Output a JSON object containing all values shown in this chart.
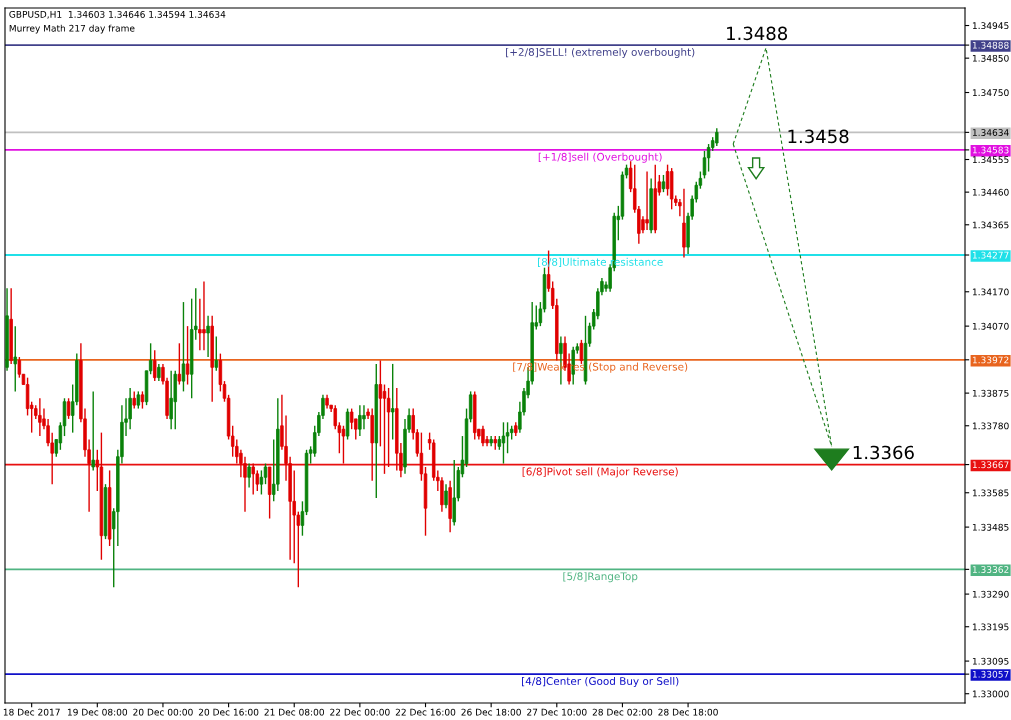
{
  "chart_data": {
    "type": "candlestick",
    "title": "GBPUSD,H1  1.34603 1.34646 1.34594 1.34634",
    "subtitle": "Murrey Math 217 day frame",
    "categories": [
      null,
      null,
      null,
      null,
      null,
      null,
      "18 Dec 2017",
      null,
      null,
      null,
      null,
      null,
      null,
      null,
      null,
      null,
      null,
      null,
      null,
      null,
      null,
      null,
      "19 Dec 08:00",
      null,
      null,
      null,
      null,
      null,
      null,
      null,
      null,
      null,
      null,
      null,
      null,
      null,
      null,
      null,
      "20 Dec 00:00",
      null,
      null,
      null,
      null,
      null,
      null,
      null,
      null,
      null,
      null,
      null,
      null,
      null,
      null,
      null,
      "20 Dec 16:00",
      null,
      null,
      null,
      null,
      null,
      null,
      null,
      null,
      null,
      null,
      null,
      null,
      null,
      null,
      null,
      "21 Dec 08:00",
      null,
      null,
      null,
      null,
      null,
      null,
      null,
      null,
      null,
      null,
      null,
      null,
      null,
      null,
      null,
      "22 Dec 00:00",
      null,
      null,
      null,
      null,
      null,
      null,
      null,
      null,
      null,
      null,
      null,
      null,
      null,
      null,
      null,
      "22 Dec 16:00",
      null,
      null,
      null,
      null,
      null,
      null,
      null,
      null,
      null,
      null,
      null,
      null,
      null,
      null,
      null,
      "26 Dec 18:00",
      null,
      null,
      null,
      null,
      null,
      null,
      null,
      null,
      null,
      null,
      null,
      null,
      null,
      null,
      null,
      "27 Dec 10:00",
      null,
      null,
      null,
      null,
      null,
      null,
      null,
      null,
      null,
      null,
      null,
      null,
      null,
      null,
      null,
      "28 Dec 02:00",
      null,
      null,
      null,
      null,
      null,
      null,
      null,
      null,
      null,
      null,
      null,
      null,
      null,
      null,
      null,
      "28 Dec 18:00",
      null,
      null,
      null,
      null,
      null,
      null,
      null,
      null,
      null,
      null,
      null,
      null,
      null,
      null,
      null,
      null,
      null,
      null,
      null,
      null,
      null,
      null,
      null,
      null,
      null,
      null,
      null,
      null,
      null,
      null,
      null,
      null,
      null,
      null,
      null,
      null,
      null,
      null,
      null,
      null,
      null,
      null,
      null,
      null,
      null,
      null,
      null,
      null,
      null,
      null,
      null,
      null,
      null,
      null,
      null,
      null,
      null,
      null,
      null,
      null,
      null,
      null,
      null,
      null,
      null,
      null,
      null
    ],
    "ohlc": [
      [
        1.3395,
        1.3418,
        1.3394,
        1.341
      ],
      [
        1.3409,
        1.3418,
        1.3396,
        1.3397
      ],
      [
        1.3396,
        1.3407,
        1.3388,
        1.3398
      ],
      [
        1.3397,
        1.3398,
        1.3392,
        1.3393
      ],
      [
        1.3393,
        1.3393,
        1.339,
        1.339
      ],
      [
        1.339,
        1.3392,
        1.3381,
        1.3383
      ],
      [
        1.3384,
        1.3385,
        1.3376,
        1.3383
      ],
      [
        1.3383,
        1.3384,
        1.338,
        1.3381
      ],
      [
        1.3381,
        1.3386,
        1.3375,
        1.3379
      ],
      [
        1.338,
        1.3383,
        1.3377,
        1.3378
      ],
      [
        1.3378,
        1.338,
        1.3372,
        1.3373
      ],
      [
        1.3373,
        1.3376,
        1.3361,
        1.337
      ],
      [
        1.337,
        1.3374,
        1.3369,
        1.3374
      ],
      [
        1.3373,
        1.3379,
        1.3371,
        1.3378
      ],
      [
        1.3378,
        1.3386,
        1.3375,
        1.3385
      ],
      [
        1.3385,
        1.3386,
        1.338,
        1.3381
      ],
      [
        1.3381,
        1.339,
        1.3376,
        1.3385
      ],
      [
        1.3385,
        1.3399,
        1.3384,
        1.3397
      ],
      [
        1.3397,
        1.3402,
        1.3379,
        1.338
      ],
      [
        1.338,
        1.3383,
        1.3369,
        1.3371
      ],
      [
        1.3371,
        1.3374,
        1.3353,
        1.3367
      ],
      [
        1.3366,
        1.3388,
        1.3365,
        1.3368
      ],
      [
        1.3368,
        1.3371,
        1.3359,
        1.3366
      ],
      [
        1.3366,
        1.3376,
        1.3339,
        1.3346
      ],
      [
        1.3346,
        1.3361,
        1.3345,
        1.336
      ],
      [
        1.336,
        1.3365,
        1.3343,
        1.3345
      ],
      [
        1.3348,
        1.3354,
        1.3331,
        1.3353
      ],
      [
        1.3353,
        1.3371,
        1.3343,
        1.3369
      ],
      [
        1.3369,
        1.3384,
        1.3367,
        1.3379
      ],
      [
        1.3379,
        1.3386,
        1.3375,
        1.338
      ],
      [
        1.338,
        1.3389,
        1.3377,
        1.3386
      ],
      [
        1.3386,
        1.3388,
        1.3383,
        1.3384
      ],
      [
        1.3384,
        1.3388,
        1.3383,
        1.3387
      ],
      [
        1.3387,
        1.3388,
        1.3383,
        1.3385
      ],
      [
        1.3385,
        1.3394,
        1.3384,
        1.3394
      ],
      [
        1.3394,
        1.3402,
        1.3393,
        1.3397
      ],
      [
        1.3397,
        1.34,
        1.3391,
        1.3392
      ],
      [
        1.3392,
        1.3396,
        1.3391,
        1.3395
      ],
      [
        1.3395,
        1.3396,
        1.339,
        1.3391
      ],
      [
        1.3391,
        1.3392,
        1.338,
        1.3381
      ],
      [
        1.338,
        1.3394,
        1.3377,
        1.3386
      ],
      [
        1.3385,
        1.3394,
        1.3377,
        1.3393
      ],
      [
        1.3393,
        1.3402,
        1.339,
        1.3391
      ],
      [
        1.3391,
        1.3414,
        1.3388,
        1.3396
      ],
      [
        1.3396,
        1.3407,
        1.339,
        1.3393
      ],
      [
        1.3393,
        1.3415,
        1.3386,
        1.3406
      ],
      [
        1.3406,
        1.3418,
        1.3403,
        1.3407
      ],
      [
        1.3406,
        1.3415,
        1.34,
        1.3405
      ],
      [
        1.3406,
        1.342,
        1.34,
        1.3405
      ],
      [
        1.3405,
        1.341,
        1.3398,
        1.3407
      ],
      [
        1.3407,
        1.341,
        1.3385,
        1.3395
      ],
      [
        1.3395,
        1.3404,
        1.3394,
        1.3397
      ],
      [
        1.3397,
        1.3399,
        1.3388,
        1.339
      ],
      [
        1.339,
        1.3391,
        1.3385,
        1.3386
      ],
      [
        1.3386,
        1.3387,
        1.3374,
        1.3375
      ],
      [
        1.3375,
        1.3378,
        1.3369,
        1.3372
      ],
      [
        1.3372,
        1.3374,
        1.3367,
        1.3369
      ],
      [
        1.337,
        1.3371,
        1.3363,
        1.3367
      ],
      [
        1.3367,
        1.3369,
        1.3353,
        1.3363
      ],
      [
        1.3363,
        1.3367,
        1.336,
        1.3366
      ],
      [
        1.3366,
        1.3367,
        1.3358,
        1.3364
      ],
      [
        1.3364,
        1.3365,
        1.3359,
        1.3361
      ],
      [
        1.3361,
        1.3365,
        1.3358,
        1.3363
      ],
      [
        1.3363,
        1.3367,
        1.3361,
        1.3366
      ],
      [
        1.3366,
        1.3366,
        1.3351,
        1.3358
      ],
      [
        1.3358,
        1.3374,
        1.3356,
        1.3361
      ],
      [
        1.3361,
        1.3386,
        1.3359,
        1.3377
      ],
      [
        1.3378,
        1.3387,
        1.3371,
        1.3372
      ],
      [
        1.3372,
        1.3381,
        1.3362,
        1.3367
      ],
      [
        1.3367,
        1.3369,
        1.3339,
        1.3356
      ],
      [
        1.3356,
        1.3365,
        1.3338,
        1.3352
      ],
      [
        1.3352,
        1.3353,
        1.3331,
        1.3349
      ],
      [
        1.3349,
        1.3356,
        1.3346,
        1.3353
      ],
      [
        1.3353,
        1.3371,
        1.3352,
        1.337
      ],
      [
        1.337,
        1.3372,
        1.3367,
        1.3371
      ],
      [
        1.337,
        1.3378,
        1.3369,
        1.3376
      ],
      [
        1.3376,
        1.3382,
        1.3375,
        1.3381
      ],
      [
        1.3381,
        1.3387,
        1.338,
        1.3386
      ],
      [
        1.3386,
        1.3387,
        1.3383,
        1.3384
      ],
      [
        1.3384,
        1.3384,
        1.3382,
        1.3383
      ],
      [
        1.3383,
        1.3384,
        1.3377,
        1.3378
      ],
      [
        1.3378,
        1.3379,
        1.337,
        1.3376
      ],
      [
        1.3377,
        1.3378,
        1.3367,
        1.3375
      ],
      [
        1.3375,
        1.3383,
        1.3374,
        1.3382
      ],
      [
        1.3382,
        1.3383,
        1.3377,
        1.3379
      ],
      [
        1.338,
        1.338,
        1.3374,
        1.3377
      ],
      [
        1.3377,
        1.3384,
        1.3375,
        1.3381
      ],
      [
        1.338,
        1.3384,
        1.3377,
        1.3381
      ],
      [
        1.3382,
        1.3383,
        1.338,
        1.3381
      ],
      [
        1.3381,
        1.3383,
        1.3362,
        1.3373
      ],
      [
        1.3373,
        1.3396,
        1.3357,
        1.339
      ],
      [
        1.339,
        1.3397,
        1.3372,
        1.3386
      ],
      [
        1.3388,
        1.339,
        1.3364,
        1.3386
      ],
      [
        1.3386,
        1.3389,
        1.3366,
        1.3382
      ],
      [
        1.3382,
        1.3396,
        1.3374,
        1.3383
      ],
      [
        1.3383,
        1.3389,
        1.3365,
        1.337
      ],
      [
        1.337,
        1.3373,
        1.3363,
        1.3365
      ],
      [
        1.3366,
        1.338,
        1.3364,
        1.3377
      ],
      [
        1.3377,
        1.3383,
        1.3376,
        1.3381
      ],
      [
        1.3381,
        1.3383,
        1.3374,
        1.3376
      ],
      [
        1.3376,
        1.3377,
        1.3369,
        1.337
      ],
      [
        1.337,
        1.3376,
        1.3362,
        1.3364
      ],
      [
        1.3364,
        1.3366,
        1.3346,
        1.3354
      ],
      [
        1.3374,
        1.3376,
        1.3371,
        1.3373
      ],
      [
        1.3373,
        1.3374,
        1.3362,
        1.3363
      ],
      [
        1.3363,
        1.3365,
        1.3359,
        1.3362
      ],
      [
        1.3362,
        1.3363,
        1.3353,
        1.3355
      ],
      [
        1.3355,
        1.3361,
        1.3354,
        1.3359
      ],
      [
        1.336,
        1.3362,
        1.3347,
        1.3351
      ],
      [
        1.335,
        1.3368,
        1.3349,
        1.3357
      ],
      [
        1.3357,
        1.3366,
        1.3356,
        1.3365
      ],
      [
        1.3364,
        1.3375,
        1.3363,
        1.3368
      ],
      [
        1.3367,
        1.3383,
        1.3366,
        1.338
      ],
      [
        1.338,
        1.3388,
        1.3379,
        1.3387
      ],
      [
        1.3387,
        1.3388,
        1.3374,
        1.3376
      ],
      [
        1.3377,
        1.3377,
        1.3374,
        1.3375
      ],
      [
        1.3377,
        1.3378,
        1.3372,
        1.3373
      ],
      [
        1.3374,
        1.3375,
        1.3372,
        1.3373
      ],
      [
        1.3373,
        1.3375,
        1.3372,
        1.3374
      ],
      [
        1.3374,
        1.3375,
        1.3371,
        1.3373
      ],
      [
        1.3372,
        1.3375,
        1.3371,
        1.3374
      ],
      [
        1.3373,
        1.3379,
        1.3367,
        1.3375
      ],
      [
        1.3375,
        1.3379,
        1.337,
        1.3376
      ],
      [
        1.3376,
        1.3378,
        1.3374,
        1.3377
      ],
      [
        1.3378,
        1.3379,
        1.3375,
        1.3376
      ],
      [
        1.3377,
        1.3385,
        1.3376,
        1.3382
      ],
      [
        1.3382,
        1.3389,
        1.3381,
        1.3388
      ],
      [
        1.3387,
        1.3395,
        1.3386,
        1.3391
      ],
      [
        1.3391,
        1.3414,
        1.339,
        1.3408
      ],
      [
        1.3407,
        1.3413,
        1.3406,
        1.3408
      ],
      [
        1.3408,
        1.3414,
        1.3407,
        1.3412
      ],
      [
        1.3412,
        1.3424,
        1.3411,
        1.3422
      ],
      [
        1.3422,
        1.3429,
        1.3417,
        1.3418
      ],
      [
        1.3418,
        1.342,
        1.3412,
        1.3413
      ],
      [
        1.3413,
        1.3415,
        1.3397,
        1.3399
      ],
      [
        1.3399,
        1.3404,
        1.339,
        1.3402
      ],
      [
        1.3402,
        1.3404,
        1.3394,
        1.3395
      ],
      [
        1.3396,
        1.3399,
        1.339,
        1.3391
      ],
      [
        1.3393,
        1.3401,
        1.339,
        1.34
      ],
      [
        1.34,
        1.3402,
        1.3399,
        1.3401
      ],
      [
        1.3402,
        1.3403,
        1.3396,
        1.3397
      ],
      [
        1.3391,
        1.341,
        1.339,
        1.3402
      ],
      [
        1.3402,
        1.3408,
        1.3401,
        1.3407
      ],
      [
        1.3407,
        1.3412,
        1.3406,
        1.3411
      ],
      [
        1.341,
        1.3418,
        1.3409,
        1.3417
      ],
      [
        1.3417,
        1.3421,
        1.3416,
        1.342
      ],
      [
        1.3418,
        1.342,
        1.3417,
        1.3419
      ],
      [
        1.3418,
        1.3425,
        1.3417,
        1.3424
      ],
      [
        1.3424,
        1.344,
        1.3423,
        1.3439
      ],
      [
        1.3438,
        1.3442,
        1.3432,
        1.3439
      ],
      [
        1.3439,
        1.3452,
        1.3438,
        1.3451
      ],
      [
        1.3451,
        1.3454,
        1.345,
        1.3453
      ],
      [
        1.3453,
        1.3455,
        1.3446,
        1.3447
      ],
      [
        1.3447,
        1.3454,
        1.344,
        1.3441
      ],
      [
        1.3441,
        1.3442,
        1.3431,
        1.3434
      ],
      [
        1.3438,
        1.3439,
        1.3434,
        1.3435
      ],
      [
        1.3438,
        1.3452,
        1.3435,
        1.3437
      ],
      [
        1.3435,
        1.345,
        1.3434,
        1.3447
      ],
      [
        1.3447,
        1.3454,
        1.3434,
        1.3435
      ],
      [
        1.3449,
        1.3451,
        1.3445,
        1.3446
      ],
      [
        1.3447,
        1.3451,
        1.3446,
        1.3449
      ],
      [
        1.3452,
        1.3454,
        1.3445,
        1.3447
      ],
      [
        1.3452,
        1.3453,
        1.3441,
        1.3444
      ],
      [
        1.3444,
        1.3445,
        1.3442,
        1.3443
      ],
      [
        1.3443,
        1.3444,
        1.3439,
        1.3442
      ],
      [
        1.3437,
        1.3447,
        1.3427,
        1.343
      ],
      [
        1.343,
        1.344,
        1.3428,
        1.3439
      ],
      [
        1.3439,
        1.3445,
        1.3438,
        1.3444
      ],
      [
        1.3444,
        1.3449,
        1.3443,
        1.3448
      ],
      [
        1.3448,
        1.3452,
        1.3447,
        1.345
      ],
      [
        1.3451,
        1.3458,
        1.345,
        1.3456
      ],
      [
        1.3456,
        1.346,
        1.3452,
        1.3459
      ],
      [
        1.3459,
        1.3462,
        1.3458,
        1.3461
      ],
      [
        1.34603,
        1.34646,
        1.34594,
        1.34634
      ],
      null,
      null,
      null,
      null,
      null,
      null,
      null,
      null,
      null,
      null,
      null,
      null,
      null,
      null,
      null,
      null,
      null,
      null,
      null,
      null,
      null,
      null,
      null,
      null,
      null,
      null,
      null,
      null,
      null,
      null,
      null,
      null,
      null,
      null,
      null,
      null,
      null,
      null,
      null,
      null,
      null,
      null,
      null,
      null,
      null,
      null,
      null,
      null,
      null,
      null,
      null,
      null,
      null,
      null,
      null,
      null,
      null,
      null,
      null,
      null
    ],
    "series": [
      {
        "type": "line",
        "color": "#1e7d1e",
        "line_style": "dashed",
        "values": [
          null,
          null,
          null,
          null,
          null,
          null,
          null,
          null,
          null,
          null,
          null,
          null,
          null,
          null,
          null,
          null,
          null,
          null,
          null,
          null,
          null,
          null,
          null,
          null,
          null,
          null,
          null,
          null,
          null,
          null,
          null,
          null,
          null,
          null,
          null,
          null,
          null,
          null,
          null,
          null,
          null,
          null,
          null,
          null,
          null,
          null,
          null,
          null,
          null,
          null,
          null,
          null,
          null,
          null,
          null,
          null,
          null,
          null,
          null,
          null,
          null,
          null,
          null,
          null,
          null,
          null,
          null,
          null,
          null,
          null,
          null,
          null,
          null,
          null,
          null,
          null,
          null,
          null,
          null,
          null,
          null,
          null,
          null,
          null,
          null,
          null,
          null,
          null,
          null,
          null,
          null,
          null,
          null,
          null,
          null,
          null,
          null,
          null,
          null,
          null,
          null,
          null,
          null,
          null,
          null,
          null,
          null,
          null,
          null,
          null,
          null,
          null,
          null,
          null,
          null,
          null,
          null,
          null,
          null,
          null,
          null,
          null,
          null,
          null,
          null,
          null,
          null,
          null,
          null,
          null,
          null,
          null,
          null,
          null,
          null,
          null,
          null,
          null,
          null,
          null,
          null,
          null,
          null,
          null,
          null,
          null,
          null,
          null,
          null,
          null,
          null,
          null,
          null,
          null,
          null,
          null,
          null,
          null,
          null,
          null,
          null,
          null,
          null,
          null,
          null,
          null,
          null,
          null,
          null,
          null,
          null,
          null,
          null,
          null,
          null,
          null,
          null,
          1.346,
          null,
          null,
          null,
          null,
          null,
          null,
          null,
          1.3488,
          null,
          null,
          null,
          null,
          null,
          null,
          null,
          null,
          null,
          null,
          null,
          null,
          null,
          null,
          null,
          1.3372,
          null,
          null,
          null,
          null,
          null,
          null,
          null,
          null,
          null,
          null,
          null,
          null,
          null,
          null,
          null,
          null,
          null,
          null,
          null,
          null,
          null,
          null,
          null,
          null,
          null,
          null,
          null,
          null,
          null,
          null,
          null,
          null
        ]
      },
      {
        "type": "line",
        "color": "#1e7d1e",
        "line_style": "dashed",
        "values": [
          null,
          null,
          null,
          null,
          null,
          null,
          null,
          null,
          null,
          null,
          null,
          null,
          null,
          null,
          null,
          null,
          null,
          null,
          null,
          null,
          null,
          null,
          null,
          null,
          null,
          null,
          null,
          null,
          null,
          null,
          null,
          null,
          null,
          null,
          null,
          null,
          null,
          null,
          null,
          null,
          null,
          null,
          null,
          null,
          null,
          null,
          null,
          null,
          null,
          null,
          null,
          null,
          null,
          null,
          null,
          null,
          null,
          null,
          null,
          null,
          null,
          null,
          null,
          null,
          null,
          null,
          null,
          null,
          null,
          null,
          null,
          null,
          null,
          null,
          null,
          null,
          null,
          null,
          null,
          null,
          null,
          null,
          null,
          null,
          null,
          null,
          null,
          null,
          null,
          null,
          null,
          null,
          null,
          null,
          null,
          null,
          null,
          null,
          null,
          null,
          null,
          null,
          null,
          null,
          null,
          null,
          null,
          null,
          null,
          null,
          null,
          null,
          null,
          null,
          null,
          null,
          null,
          null,
          null,
          null,
          null,
          null,
          null,
          null,
          null,
          null,
          null,
          null,
          null,
          null,
          null,
          null,
          null,
          null,
          null,
          null,
          null,
          null,
          null,
          null,
          null,
          null,
          null,
          null,
          null,
          null,
          null,
          null,
          null,
          null,
          null,
          null,
          null,
          null,
          null,
          null,
          null,
          null,
          null,
          null,
          null,
          null,
          null,
          null,
          null,
          null,
          null,
          null,
          null,
          null,
          null,
          null,
          null,
          null,
          null,
          null,
          null,
          1.346,
          null,
          null,
          null,
          null,
          null,
          null,
          null,
          null,
          null,
          null,
          null,
          null,
          null,
          null,
          null,
          null,
          null,
          null,
          null,
          null,
          null,
          null,
          null,
          1.3372,
          null,
          null,
          null,
          null,
          null,
          null,
          null,
          null,
          null,
          null,
          null,
          null,
          null,
          null,
          null,
          null,
          null,
          null,
          null,
          null,
          null,
          null,
          null,
          null,
          null,
          null,
          null,
          null,
          null,
          null,
          null,
          null
        ]
      }
    ],
    "ref_lines": [
      {
        "axis": "y",
        "value": 1.34888,
        "label": "[+2/8]SELL! (extremely overbought)",
        "color": "#40408a"
      },
      {
        "axis": "y",
        "value": 1.34634,
        "label": null,
        "color": "#c0c0c0"
      },
      {
        "axis": "y",
        "value": 1.34583,
        "label": "[+1/8]sell (Overbought)",
        "color": "#e010e0"
      },
      {
        "axis": "y",
        "value": 1.34277,
        "label": "[8/8]Ultimate resistance",
        "color": "#20e0e8"
      },
      {
        "axis": "y",
        "value": 1.33972,
        "label": "[7/8]Weak res (Stop and Reverse)",
        "color": "#e8641e"
      },
      {
        "axis": "y",
        "value": 1.33667,
        "label": "[6/8]Pivot sell (Major Reverse)",
        "color": "#e81010"
      },
      {
        "axis": "y",
        "value": 1.33362,
        "label": "[5/8]RangeTop",
        "color": "#50b482"
      },
      {
        "axis": "y",
        "value": 1.33057,
        "label": "[4/8]Center (Good Buy or Sell)",
        "color": "#1010c8"
      }
    ],
    "annotations": [
      {
        "text": "1.3488",
        "y": 1.3488
      },
      {
        "text": "1.3458",
        "y": 1.3458
      },
      {
        "text": "1.3366",
        "y": 1.3366
      }
    ],
    "ylim": [
      1.32973,
      1.34996
    ],
    "yticks": [
      1.34945,
      1.34888,
      1.34634,
      1.34583,
      1.34277,
      1.33972,
      1.33667,
      1.33362,
      1.33057,
      {
        "value": 1.3485,
        "label": "1.34850"
      },
      {
        "value": 1.3475,
        "label": "1.34750"
      },
      1.34555,
      {
        "value": 1.3446,
        "label": "1.34460"
      },
      1.34365,
      {
        "value": 1.3417,
        "label": "1.34170"
      },
      {
        "value": 1.3407,
        "label": "1.34070"
      },
      1.33875,
      {
        "value": 1.3378,
        "label": "1.33780"
      },
      1.33585,
      1.33485,
      {
        "value": 1.3329,
        "label": "1.33290"
      },
      1.33195,
      1.33095,
      {
        "value": 1.33,
        "label": "1.33000"
      }
    ],
    "grid": false
  }
}
